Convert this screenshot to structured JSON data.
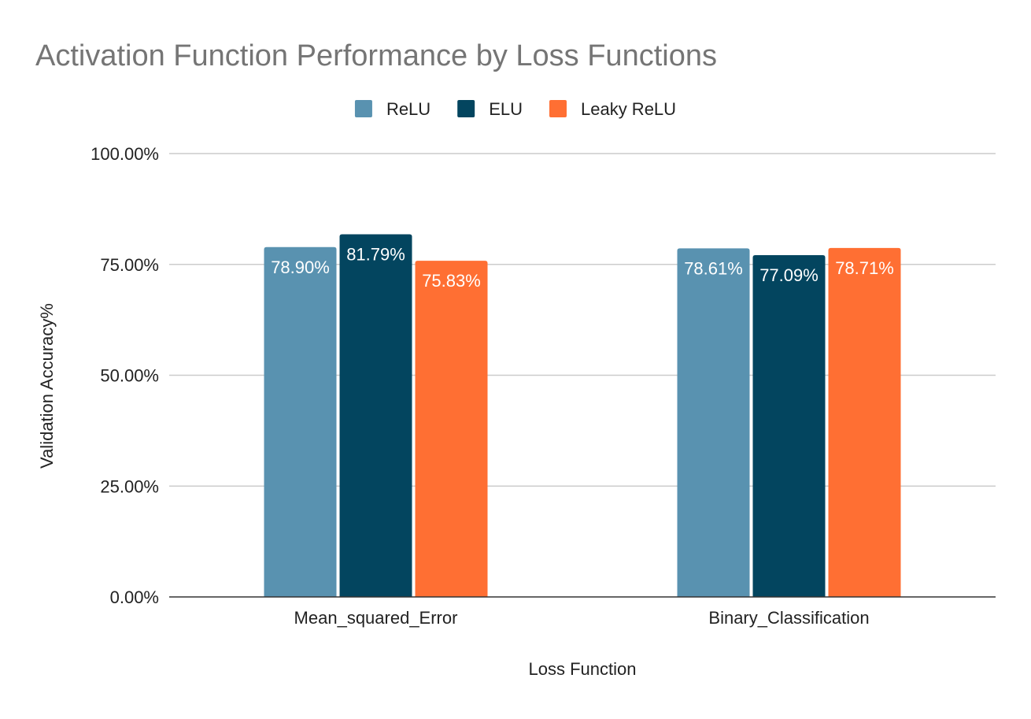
{
  "chart_data": {
    "type": "bar",
    "title": "Activation Function Performance by Loss Functions",
    "xlabel": "Loss Function",
    "ylabel": "Validation Accuracy%",
    "categories": [
      "Mean_squared_Error",
      "Binary_Classification"
    ],
    "series": [
      {
        "name": "ReLU",
        "color": "#5992B0",
        "values": [
          78.9,
          78.61
        ],
        "labels": [
          "78.90%",
          "78.61%"
        ]
      },
      {
        "name": "ELU",
        "color": "#03455F",
        "values": [
          81.79,
          77.09
        ],
        "labels": [
          "81.79%",
          "77.09%"
        ]
      },
      {
        "name": "Leaky ReLU",
        "color": "#FF6F33",
        "values": [
          75.83,
          78.71
        ],
        "labels": [
          "75.83%",
          "78.71%"
        ]
      }
    ],
    "ylim": [
      0,
      100
    ],
    "yticks": [
      {
        "value": 0,
        "label": "0.00%"
      },
      {
        "value": 25,
        "label": "25.00%"
      },
      {
        "value": 50,
        "label": "50.00%"
      },
      {
        "value": 75,
        "label": "75.00%"
      },
      {
        "value": 100,
        "label": "100.00%"
      }
    ],
    "grid": true,
    "legend": "top-center",
    "colors": {
      "title": "#757575",
      "text": "#222222",
      "grid": "#CCCCCC",
      "axis": "#333333",
      "data_label": "#FFFFFF"
    }
  }
}
